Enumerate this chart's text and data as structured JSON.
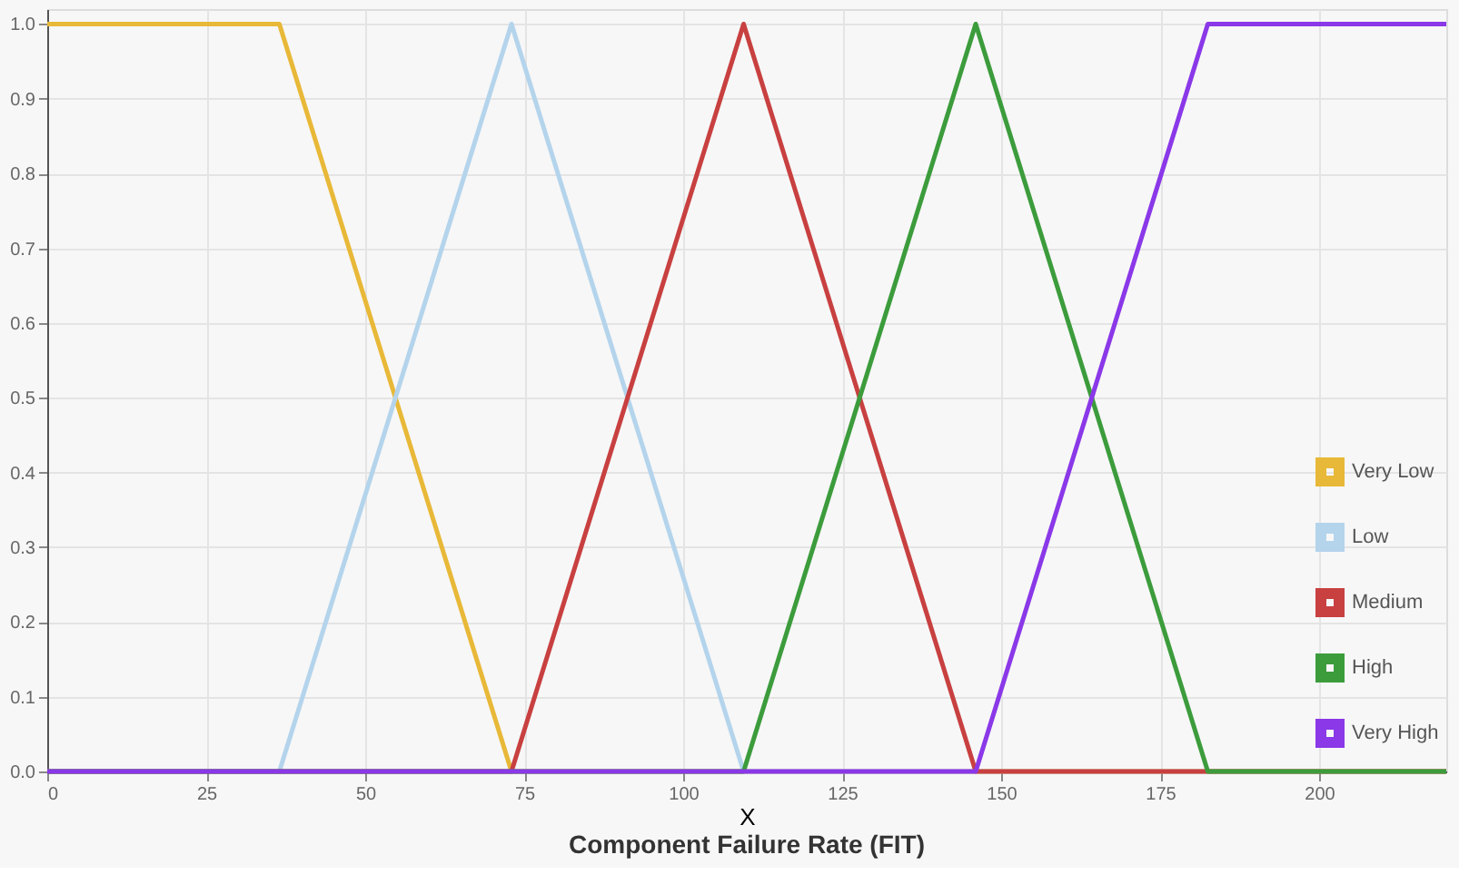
{
  "chart_data": {
    "type": "line",
    "title": "Component Failure Rate (FIT)",
    "xlabel": "X",
    "xlim": [
      0,
      220
    ],
    "xticks": [
      0,
      25,
      50,
      75,
      100,
      125,
      150,
      175,
      200
    ],
    "ylim": [
      0,
      1.02
    ],
    "yticks": [
      {
        "value": 0,
        "label": "0.0"
      },
      0.1,
      0.2,
      0.3,
      0.4,
      0.5,
      0.6,
      0.7,
      0.8,
      0.9,
      {
        "value": 1,
        "label": "1.0"
      }
    ],
    "grid": true,
    "legend": "bottom right",
    "marker": "none",
    "line_style": "solid",
    "series": [
      {
        "name": "Very Low",
        "color": "#e8b838",
        "x": [
          0,
          36.5,
          73,
          220
        ],
        "values": [
          1,
          1,
          0,
          0
        ]
      },
      {
        "name": "Low",
        "color": "#b4d4ec",
        "x": [
          0,
          36.5,
          73,
          109.5,
          220
        ],
        "values": [
          0,
          0,
          1,
          0,
          0
        ]
      },
      {
        "name": "Medium",
        "color": "#c84040",
        "x": [
          0,
          73,
          109.5,
          146,
          220
        ],
        "values": [
          0,
          0,
          1,
          0,
          0
        ]
      },
      {
        "name": "High",
        "color": "#3c9c3c",
        "x": [
          0,
          109.5,
          146,
          182.5,
          220
        ],
        "values": [
          0,
          0,
          1,
          0,
          0
        ]
      },
      {
        "name": "Very High",
        "color": "#8a38e8",
        "x": [
          0,
          146,
          182.5,
          220
        ],
        "values": [
          0,
          0,
          1,
          1
        ]
      }
    ]
  }
}
